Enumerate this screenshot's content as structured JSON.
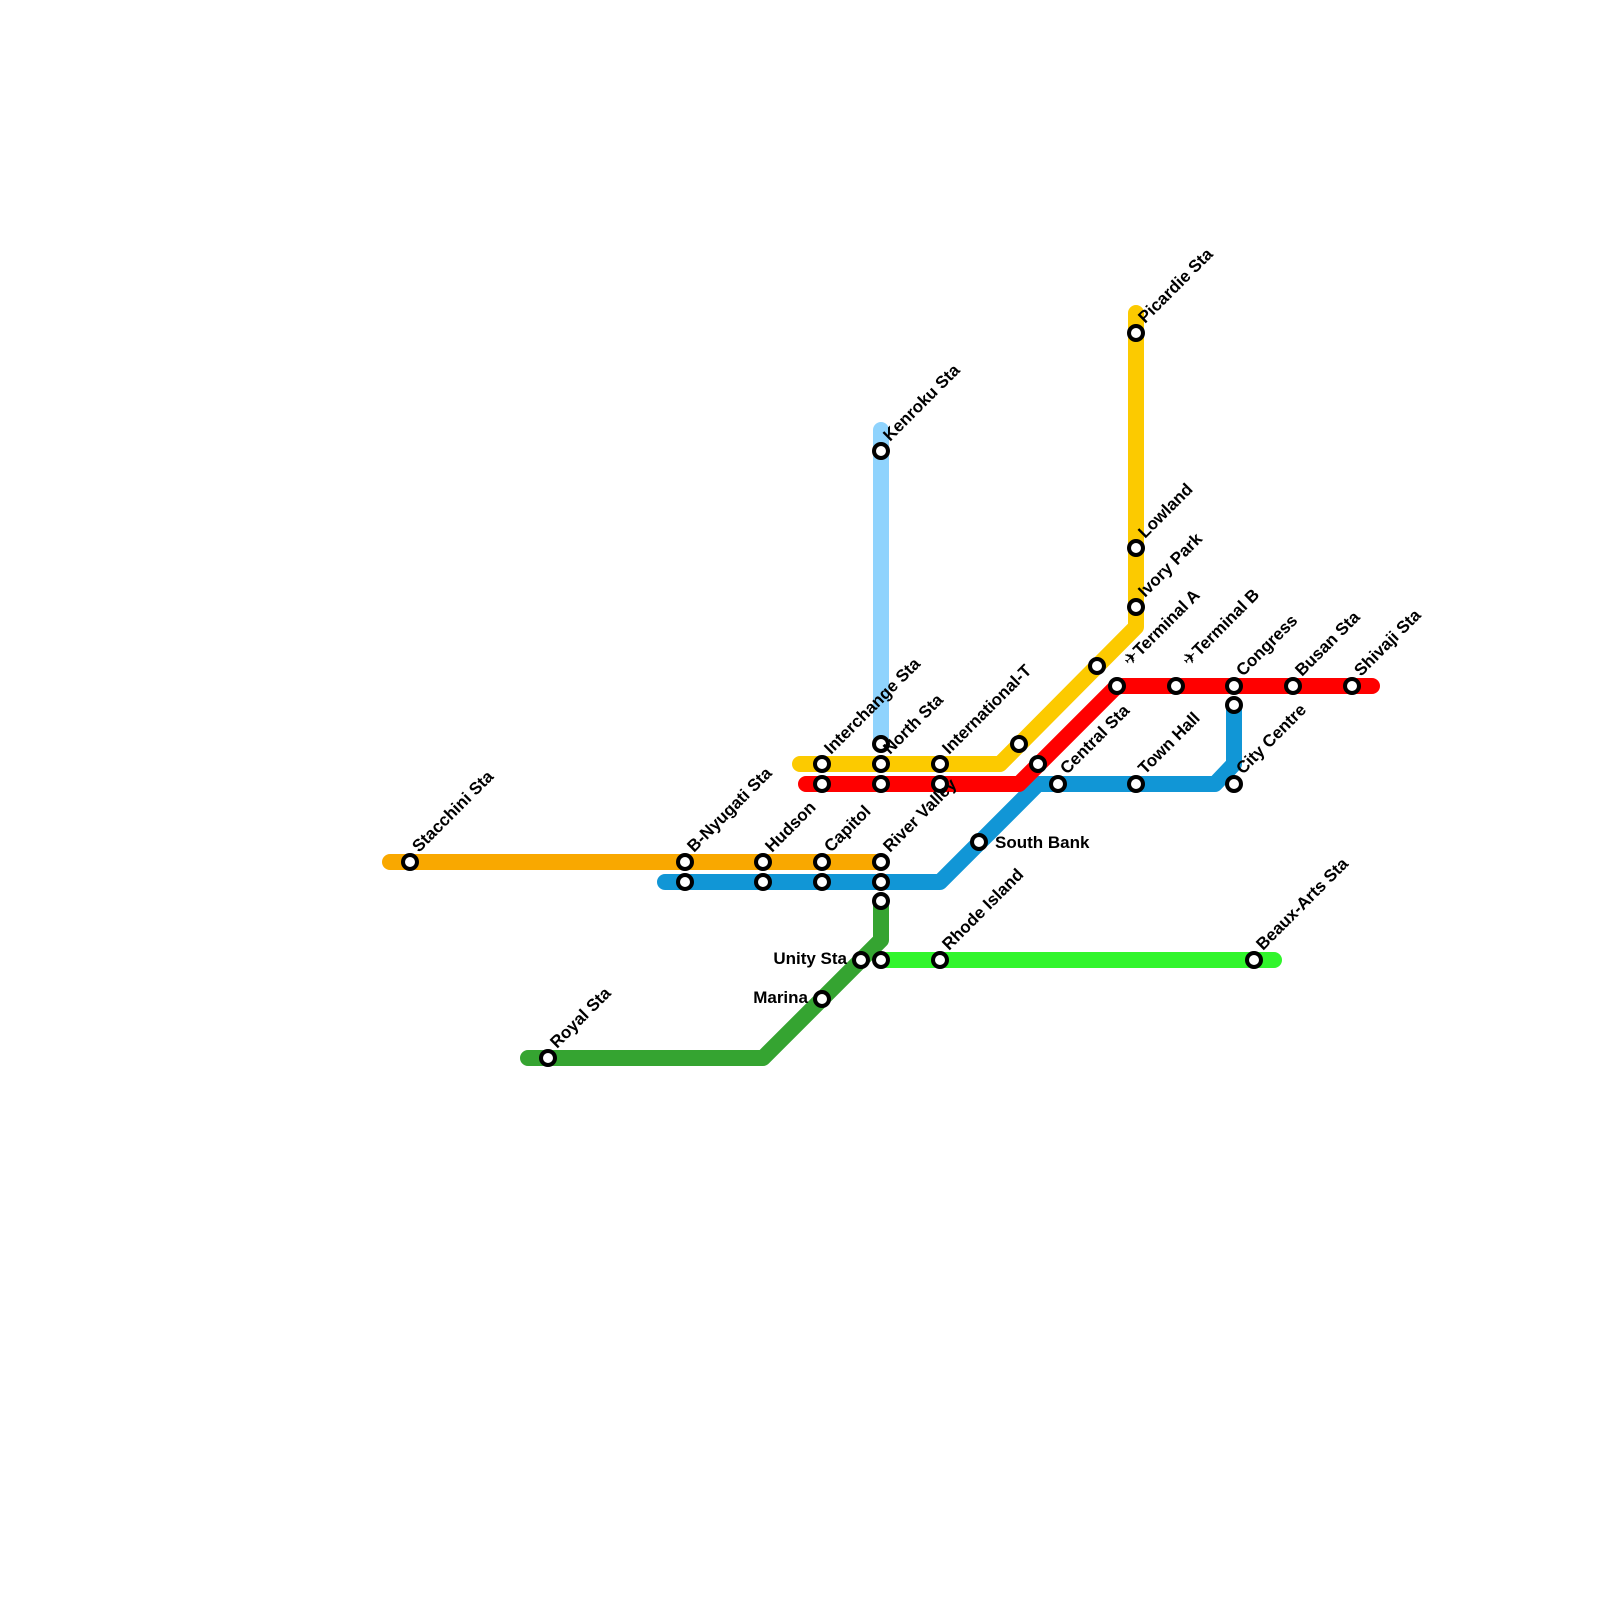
{
  "stations": [
    {
      "label": "Stacchini Sta"
    },
    {
      "label": "B-Nyugati Sta"
    },
    {
      "label": "Hudson"
    },
    {
      "label": "Capitol"
    },
    {
      "label": "River Valley"
    },
    {
      "label": "Interchange Sta"
    },
    {
      "label": "North Sta"
    },
    {
      "label": "International-T"
    },
    {
      "label": "Kenroku Sta"
    },
    {
      "label": "Picardie Sta"
    },
    {
      "label": "Lowland"
    },
    {
      "label": "Ivory Park"
    },
    {
      "label": "✈Terminal A"
    },
    {
      "label": "✈Terminal B"
    },
    {
      "label": "Central Sta"
    },
    {
      "label": "Town Hall"
    },
    {
      "label": "Congress"
    },
    {
      "label": "City Centre"
    },
    {
      "label": "Busan Sta"
    },
    {
      "label": "Shivaji Sta"
    },
    {
      "label": "South Bank"
    },
    {
      "label": "Rhode Island"
    },
    {
      "label": "Beaux-Arts Sta"
    },
    {
      "label": "Unity Sta"
    },
    {
      "label": "Marina"
    },
    {
      "label": "Royal Sta"
    }
  ]
}
